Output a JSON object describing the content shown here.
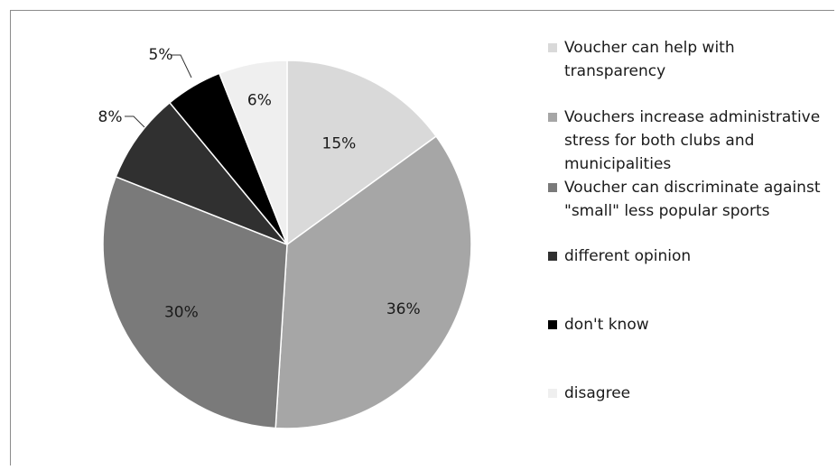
{
  "chart_data": {
    "type": "pie",
    "slices": [
      {
        "label": "Voucher can help with transparency",
        "value": 15,
        "data_label": "15%",
        "color": "#d9d9d9"
      },
      {
        "label": "Vouchers increase administrative stress for both clubs and municipalities",
        "value": 36,
        "data_label": "36%",
        "color": "#a6a6a6"
      },
      {
        "label": "Voucher can discriminate against \"small\" less popular sports",
        "value": 30,
        "data_label": "30%",
        "color": "#7a7a7a"
      },
      {
        "label": "different opinion",
        "value": 8,
        "data_label": "8%",
        "color": "#303030"
      },
      {
        "label": "don't know",
        "value": 5,
        "data_label": "5%",
        "color": "#000000"
      },
      {
        "label": "disagree",
        "value": 6,
        "data_label": "6%",
        "color": "#efefef"
      }
    ],
    "legend_placement": "right",
    "start_angle": "12 o'clock",
    "direction": "clockwise"
  }
}
